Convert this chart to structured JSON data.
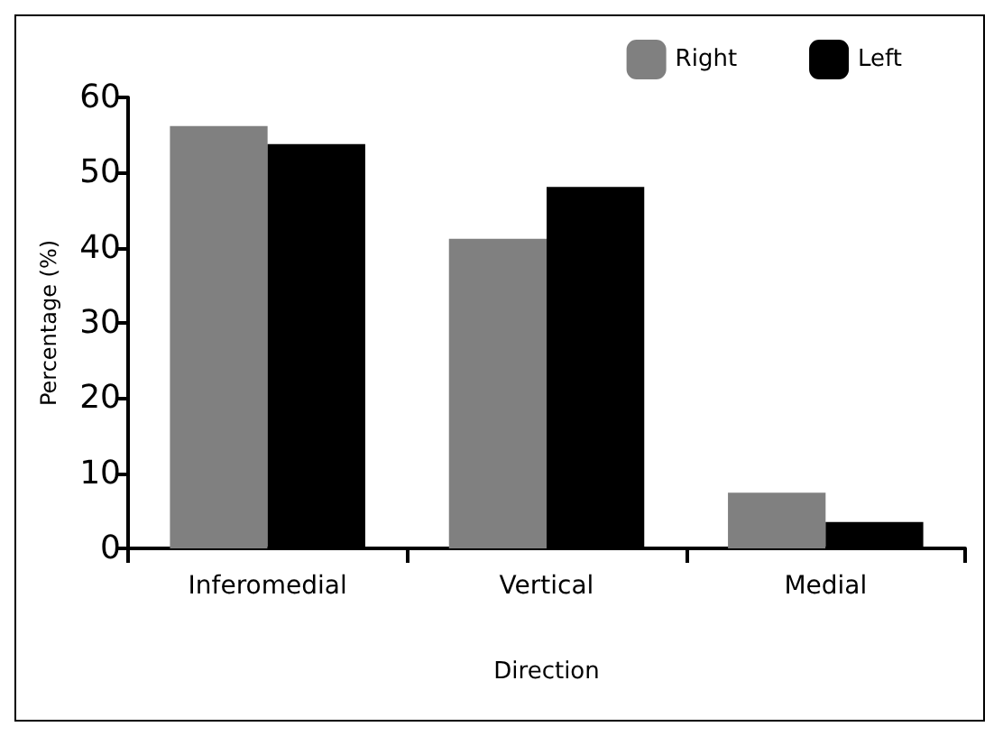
{
  "chart_data": {
    "type": "bar",
    "xlabel": "Direction",
    "ylabel": "Percentage (%)",
    "categories": [
      "Inferomedial",
      "Vertical",
      "Medial"
    ],
    "series": [
      {
        "name": "Right",
        "color": "#808080",
        "values": [
          56.2,
          41.2,
          7.4
        ]
      },
      {
        "name": "Left",
        "color": "#000000",
        "values": [
          53.8,
          48.1,
          3.5
        ]
      }
    ],
    "ylim": [
      0,
      60
    ],
    "yticks": [
      0,
      10,
      20,
      30,
      40,
      50,
      60
    ],
    "grid": false,
    "legend": "top right"
  }
}
